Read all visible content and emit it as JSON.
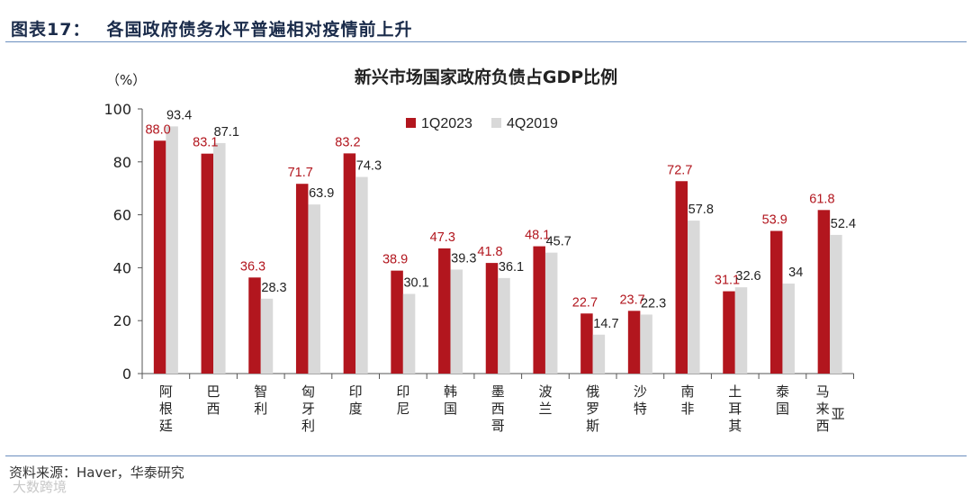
{
  "header": {
    "figure_number": "图表17：",
    "figure_title": "各国政府债务水平普遍相对疫情前上升"
  },
  "footer": {
    "source": "资料来源：Haver，华泰研究",
    "watermark": "大数跨境"
  },
  "colors": {
    "series_a": "#b2161e",
    "series_b": "#d9d9d9",
    "axis": "#555555",
    "header_text": "#1a2b4a",
    "rule": "#6b8fbf"
  },
  "chart_data": {
    "type": "bar",
    "title": "新兴市场国家政府负债占GDP比例",
    "ylabel": "（%）",
    "xlabel": "",
    "ylim": [
      0,
      100
    ],
    "yticks": [
      0,
      20,
      40,
      60,
      80,
      100
    ],
    "grid": false,
    "legend_position": "top-center",
    "categories": [
      "阿根廷",
      "巴西",
      "智利",
      "匈牙利",
      "印度",
      "印尼",
      "韩国",
      "墨西哥",
      "波兰",
      "俄罗斯",
      "沙特",
      "南非",
      "土耳其",
      "泰国",
      "马来西亚"
    ],
    "series": [
      {
        "name": "1Q2023",
        "values": [
          88.0,
          83.1,
          36.3,
          71.7,
          83.2,
          38.9,
          47.3,
          41.8,
          48.1,
          22.7,
          23.7,
          72.7,
          31.1,
          53.9,
          61.8
        ],
        "labels": [
          "88.0",
          "83.1",
          "36.3",
          "71.7",
          "83.2",
          "38.9",
          "47.3",
          "41.8",
          "48.1",
          "22.7",
          "23.7",
          "72.7",
          "31.1",
          "53.9",
          "61.8"
        ]
      },
      {
        "name": "4Q2019",
        "values": [
          93.4,
          87.1,
          28.3,
          63.9,
          74.3,
          30.1,
          39.3,
          36.1,
          45.7,
          14.7,
          22.3,
          57.8,
          32.6,
          34,
          52.4
        ],
        "labels": [
          "93.4",
          "87.1",
          "28.3",
          "63.9",
          "74.3",
          "30.1",
          "39.3",
          "36.1",
          "45.7",
          "14.7",
          "22.3",
          "57.8",
          "32.6",
          "34",
          "52.4"
        ]
      }
    ]
  }
}
